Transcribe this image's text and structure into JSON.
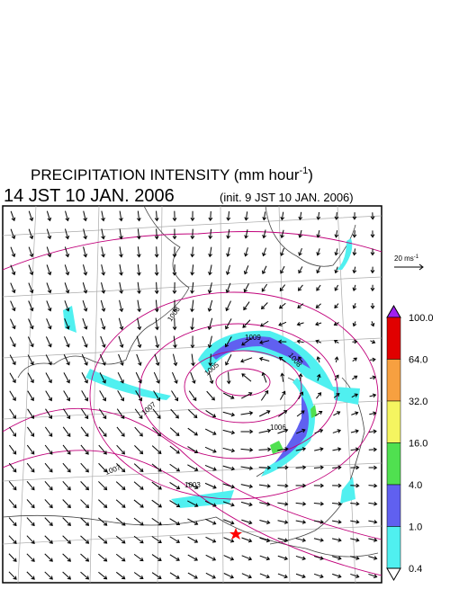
{
  "header": {
    "title": "PRECIPITATION INTENSITY (mm hour",
    "title_exponent": "-1",
    "title_close": ")",
    "valid_time": "14 JST 10 JAN. 2006",
    "init_time": "(init. 9 JST 10 JAN. 2006)"
  },
  "wind_scale": {
    "label": "20 ms",
    "exponent": "-1"
  },
  "colorbar": {
    "labels": [
      "100.0",
      "64.0",
      "32.0",
      "16.0",
      "4.0",
      "1.0",
      "0.4"
    ],
    "colors": [
      "#e00000",
      "#f7a040",
      "#f5f560",
      "#50e050",
      "#6060f0",
      "#50f0f0"
    ],
    "over_color": "#a020f0",
    "under_color": "#ffffff"
  },
  "contour_labels": [
    "1008",
    "1009",
    "1005",
    "1006",
    "1007",
    "1008",
    "1007",
    "1003"
  ]
}
